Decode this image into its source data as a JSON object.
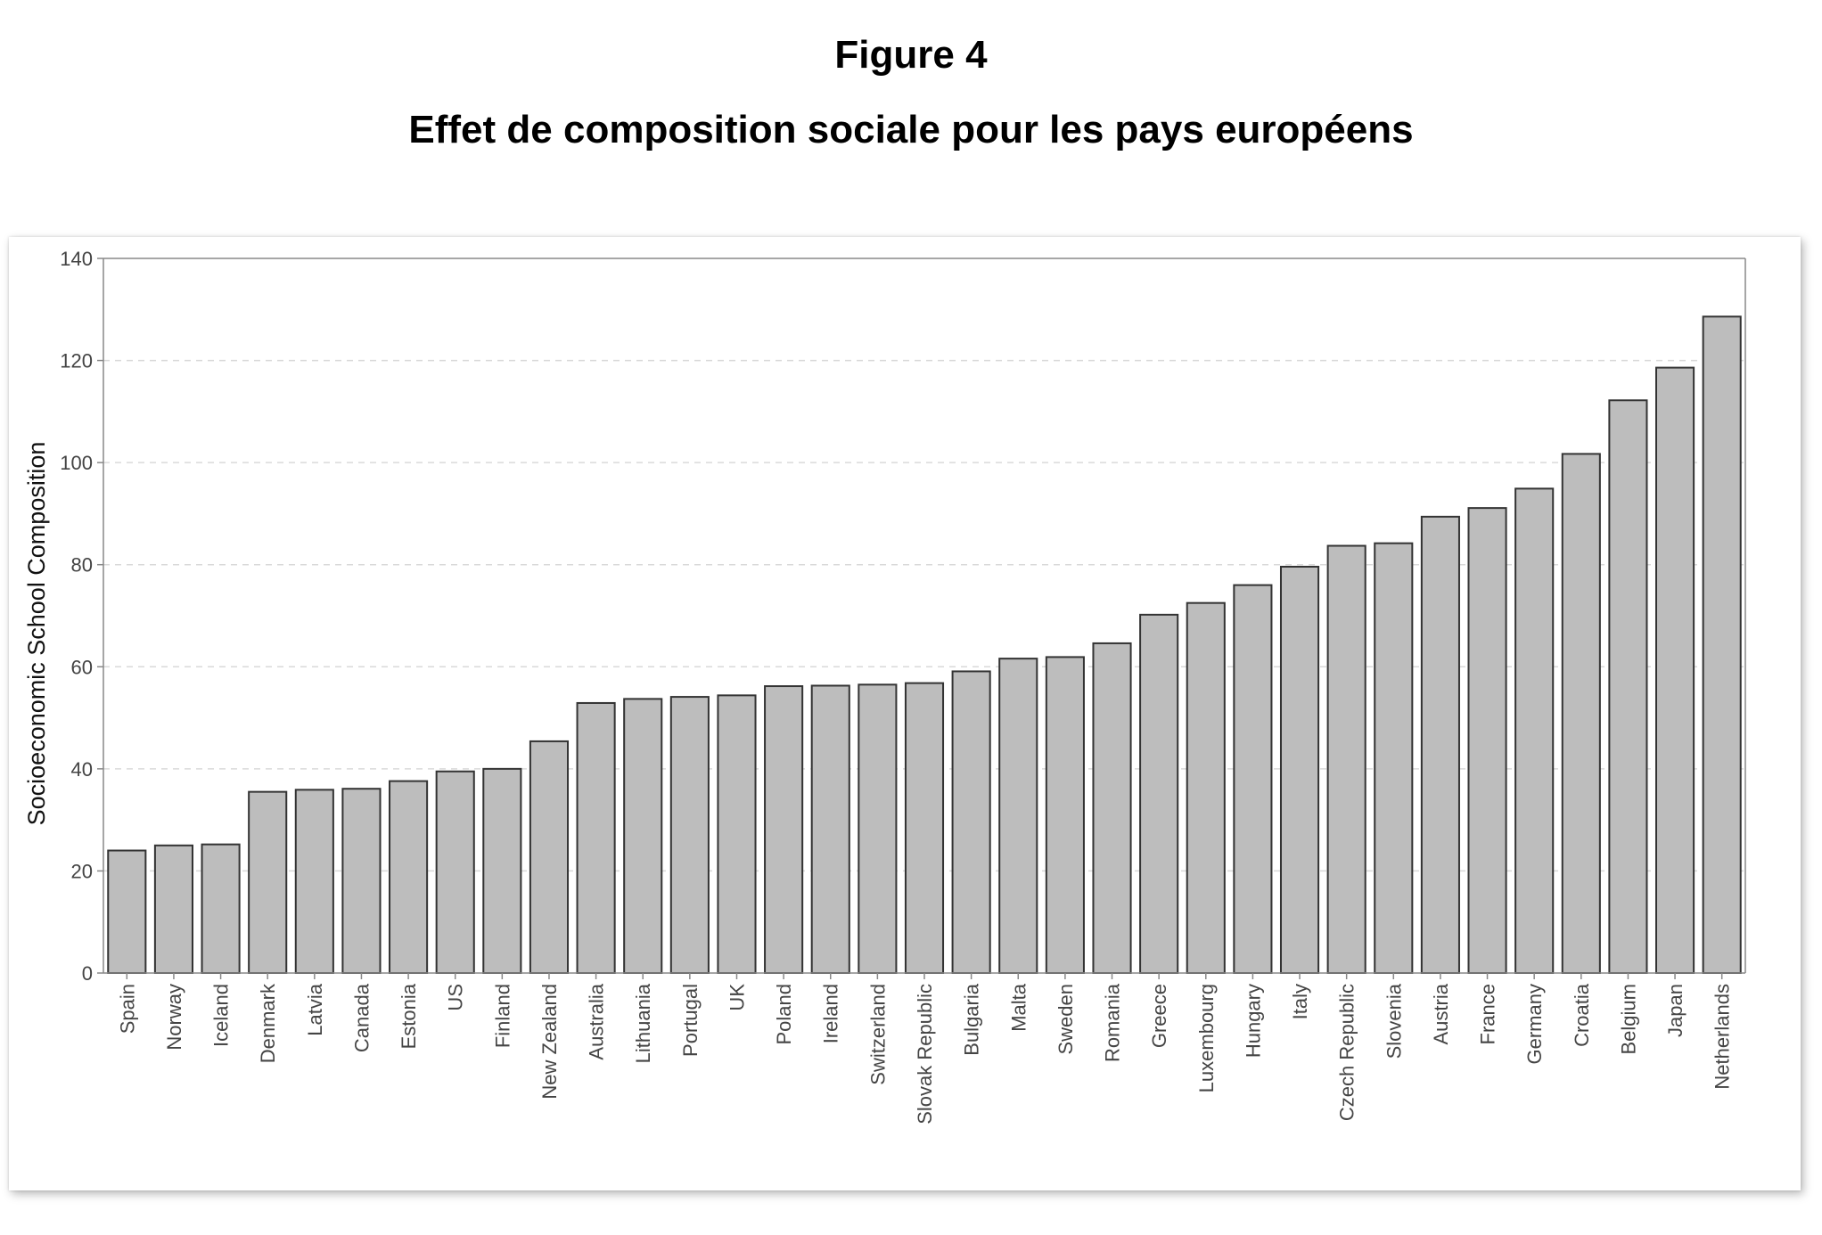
{
  "figure": {
    "title": "Figure 4",
    "subtitle": "Effet de composition sociale pour les pays européens"
  },
  "colors": {
    "bar_fill": "#bdbdbd",
    "bar_stroke": "#333333",
    "grid": "#d9d9d9",
    "axis": "#888888"
  },
  "chart_data": {
    "type": "bar",
    "title": "",
    "xlabel": "",
    "ylabel": "Socioeconomic School Composition",
    "ylim": [
      0,
      140
    ],
    "yticks": [
      0,
      20,
      40,
      60,
      80,
      100,
      120,
      140
    ],
    "grid": "horizontal dashed",
    "legend": "none",
    "categories": [
      "Spain",
      "Norway",
      "Iceland",
      "Denmark",
      "Latvia",
      "Canada",
      "Estonia",
      "US",
      "Finland",
      "New Zealand",
      "Australia",
      "Lithuania",
      "Portugal",
      "UK",
      "Poland",
      "Ireland",
      "Switzerland",
      "Slovak Republic",
      "Bulgaria",
      "Malta",
      "Sweden",
      "Romania",
      "Greece",
      "Luxembourg",
      "Hungary",
      "Italy",
      "Czech Republic",
      "Slovenia",
      "Austria",
      "France",
      "Germany",
      "Croatia",
      "Belgium",
      "Japan",
      "Netherlands"
    ],
    "values": [
      24.0,
      25.0,
      25.2,
      35.5,
      35.9,
      36.1,
      37.6,
      39.5,
      40.0,
      45.4,
      52.9,
      53.7,
      54.1,
      54.4,
      56.2,
      56.3,
      56.5,
      56.8,
      59.1,
      61.6,
      61.9,
      64.6,
      70.2,
      72.5,
      76.0,
      79.6,
      83.7,
      84.2,
      89.4,
      91.1,
      94.9,
      101.7,
      112.2,
      118.6,
      128.6
    ]
  }
}
